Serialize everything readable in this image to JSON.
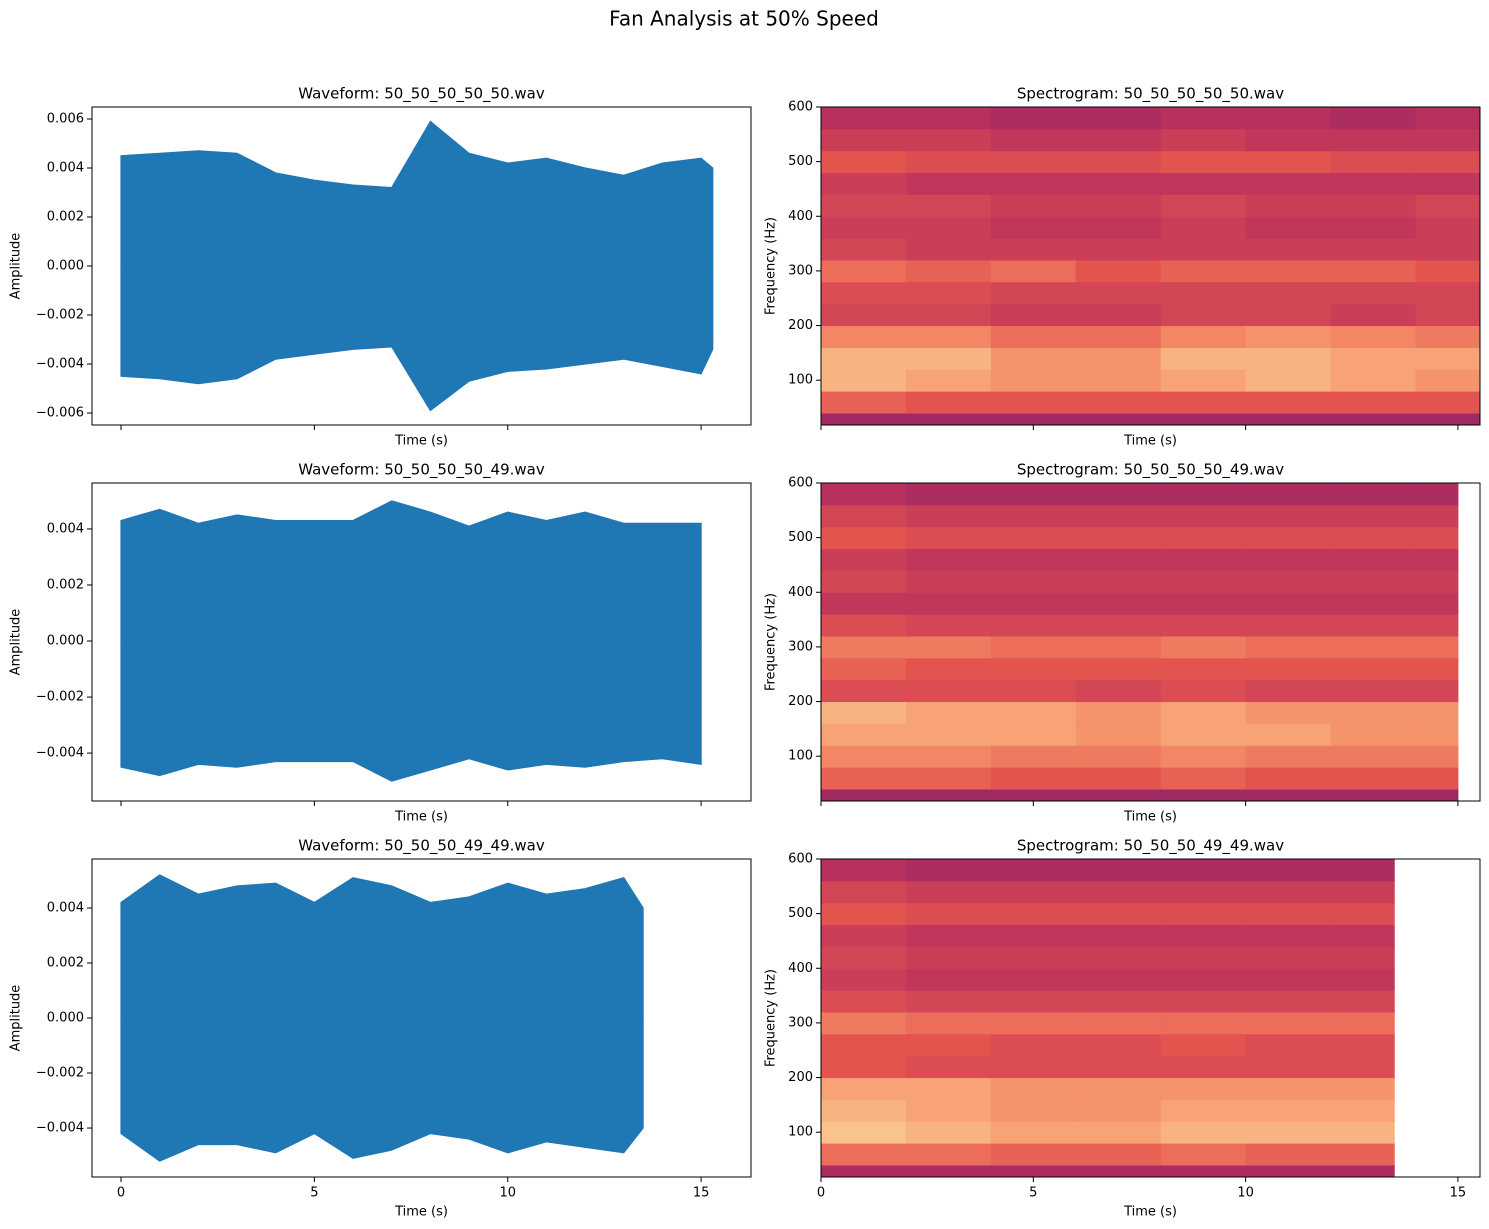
{
  "title": "Fan Analysis at 50% Speed",
  "colormap": [
    "#7d2168",
    "#b8305e",
    "#e4544f",
    "#f5936a",
    "#fde3a6"
  ],
  "chart_data": [
    {
      "type": "waveform",
      "title": "Waveform: 50_50_50_50_50.wav",
      "xlabel": "Time (s)",
      "ylabel": "Amplitude",
      "color": "#1f77b4",
      "x": [
        0,
        1,
        2,
        3,
        4,
        5,
        6,
        7,
        8,
        9,
        10,
        11,
        12,
        13,
        14,
        15,
        15.3
      ],
      "upper": [
        0.0045,
        0.0046,
        0.0047,
        0.0046,
        0.0038,
        0.0035,
        0.0033,
        0.0032,
        0.0059,
        0.0046,
        0.0042,
        0.0044,
        0.004,
        0.0037,
        0.0042,
        0.0044,
        0.004
      ],
      "lower": [
        -0.0045,
        -0.0046,
        -0.0048,
        -0.0046,
        -0.0038,
        -0.0036,
        -0.0034,
        -0.0033,
        -0.0059,
        -0.0047,
        -0.0043,
        -0.0042,
        -0.004,
        -0.0038,
        -0.0041,
        -0.0044,
        -0.0034
      ],
      "xlim": [
        -0.75,
        16.29
      ],
      "xticks": [
        0,
        5,
        10,
        15
      ],
      "show_xtick_labels": false,
      "ylim": [
        -0.00649,
        0.00649
      ],
      "yticks": [
        {
          "value": -0.006,
          "label": "−0.006"
        },
        {
          "value": -0.004,
          "label": "−0.004"
        },
        {
          "value": -0.002,
          "label": "−0.002"
        },
        {
          "value": 0,
          "label": "0.000"
        },
        0.002,
        0.004,
        0.006
      ]
    },
    {
      "type": "spectrogram",
      "title": "Spectrogram: 50_50_50_50_50.wav",
      "xlabel": "Time (s)",
      "ylabel": "Frequency (Hz)",
      "x": [
        0,
        2,
        4,
        6,
        8,
        10,
        12,
        14,
        15.5
      ],
      "bands": [
        18,
        40,
        80,
        120,
        160,
        200,
        240,
        280,
        320,
        360,
        400,
        440,
        480,
        520,
        560,
        600
      ],
      "z": [
        [
          0.15,
          0.15,
          0.15,
          0.15,
          0.15,
          0.15,
          0.15,
          0.15
        ],
        [
          0.55,
          0.5,
          0.5,
          0.5,
          0.5,
          0.5,
          0.5,
          0.5
        ],
        [
          0.85,
          0.8,
          0.75,
          0.75,
          0.8,
          0.85,
          0.8,
          0.75
        ],
        [
          0.85,
          0.85,
          0.75,
          0.75,
          0.85,
          0.85,
          0.8,
          0.8
        ],
        [
          0.7,
          0.7,
          0.6,
          0.6,
          0.7,
          0.75,
          0.7,
          0.65
        ],
        [
          0.4,
          0.4,
          0.35,
          0.35,
          0.4,
          0.4,
          0.35,
          0.4
        ],
        [
          0.45,
          0.45,
          0.4,
          0.4,
          0.4,
          0.4,
          0.4,
          0.4
        ],
        [
          0.6,
          0.55,
          0.6,
          0.5,
          0.55,
          0.55,
          0.55,
          0.5
        ],
        [
          0.4,
          0.35,
          0.35,
          0.35,
          0.35,
          0.35,
          0.35,
          0.35
        ],
        [
          0.35,
          0.35,
          0.3,
          0.3,
          0.35,
          0.3,
          0.3,
          0.35
        ],
        [
          0.4,
          0.4,
          0.35,
          0.35,
          0.4,
          0.35,
          0.35,
          0.4
        ],
        [
          0.35,
          0.3,
          0.3,
          0.3,
          0.3,
          0.3,
          0.3,
          0.3
        ],
        [
          0.5,
          0.45,
          0.45,
          0.45,
          0.5,
          0.5,
          0.45,
          0.45
        ],
        [
          0.35,
          0.35,
          0.3,
          0.3,
          0.35,
          0.3,
          0.3,
          0.3
        ],
        [
          0.25,
          0.25,
          0.2,
          0.2,
          0.25,
          0.25,
          0.2,
          0.25
        ]
      ],
      "xlim": [
        0,
        15.52
      ],
      "xticks": [
        0,
        5,
        10,
        15
      ],
      "show_xtick_labels": false,
      "ylim": [
        18,
        600
      ],
      "yticks": [
        100,
        200,
        300,
        400,
        500,
        600
      ]
    },
    {
      "type": "waveform",
      "title": "Waveform: 50_50_50_50_49.wav",
      "xlabel": "Time (s)",
      "ylabel": "Amplitude",
      "color": "#1f77b4",
      "x": [
        0,
        1,
        2,
        3,
        4,
        5,
        6,
        7,
        8,
        9,
        10,
        11,
        12,
        13,
        14,
        15
      ],
      "upper": [
        0.0043,
        0.0047,
        0.0042,
        0.0045,
        0.0043,
        0.0043,
        0.0043,
        0.005,
        0.0046,
        0.0041,
        0.0046,
        0.0043,
        0.0046,
        0.0042,
        0.0042,
        0.0042
      ],
      "lower": [
        -0.0045,
        -0.0048,
        -0.0044,
        -0.0045,
        -0.0043,
        -0.0043,
        -0.0043,
        -0.005,
        -0.0046,
        -0.0042,
        -0.0046,
        -0.0044,
        -0.0045,
        -0.0043,
        -0.0042,
        -0.0044
      ],
      "xlim": [
        -0.75,
        16.29
      ],
      "xticks": [
        0,
        5,
        10,
        15
      ],
      "show_xtick_labels": false,
      "ylim": [
        -0.00571,
        0.00564
      ],
      "yticks": [
        {
          "value": -0.004,
          "label": "−0.004"
        },
        {
          "value": -0.002,
          "label": "−0.002"
        },
        {
          "value": 0,
          "label": "0.000"
        },
        0.002,
        0.004
      ]
    },
    {
      "type": "spectrogram",
      "title": "Spectrogram: 50_50_50_50_49.wav",
      "xlabel": "Time (s)",
      "ylabel": "Frequency (Hz)",
      "x": [
        0,
        2,
        4,
        6,
        8,
        10,
        12,
        14,
        15
      ],
      "bands": [
        18,
        40,
        80,
        120,
        160,
        200,
        240,
        280,
        320,
        360,
        400,
        440,
        480,
        520,
        560,
        600
      ],
      "z": [
        [
          0.15,
          0.15,
          0.15,
          0.15,
          0.15,
          0.15,
          0.15,
          0.15
        ],
        [
          0.55,
          0.55,
          0.5,
          0.5,
          0.55,
          0.5,
          0.5,
          0.5
        ],
        [
          0.7,
          0.7,
          0.65,
          0.65,
          0.7,
          0.65,
          0.65,
          0.65
        ],
        [
          0.8,
          0.8,
          0.8,
          0.75,
          0.8,
          0.8,
          0.75,
          0.75
        ],
        [
          0.85,
          0.8,
          0.8,
          0.75,
          0.8,
          0.75,
          0.75,
          0.75
        ],
        [
          0.45,
          0.45,
          0.45,
          0.4,
          0.45,
          0.4,
          0.4,
          0.4
        ],
        [
          0.55,
          0.5,
          0.5,
          0.5,
          0.5,
          0.5,
          0.5,
          0.5
        ],
        [
          0.65,
          0.65,
          0.6,
          0.6,
          0.65,
          0.6,
          0.6,
          0.6
        ],
        [
          0.45,
          0.4,
          0.4,
          0.4,
          0.4,
          0.4,
          0.4,
          0.4
        ],
        [
          0.3,
          0.3,
          0.3,
          0.3,
          0.3,
          0.3,
          0.3,
          0.3
        ],
        [
          0.4,
          0.35,
          0.35,
          0.35,
          0.35,
          0.35,
          0.35,
          0.35
        ],
        [
          0.35,
          0.3,
          0.3,
          0.3,
          0.3,
          0.3,
          0.3,
          0.3
        ],
        [
          0.5,
          0.45,
          0.45,
          0.45,
          0.45,
          0.45,
          0.45,
          0.45
        ],
        [
          0.4,
          0.35,
          0.35,
          0.35,
          0.35,
          0.35,
          0.35,
          0.35
        ],
        [
          0.25,
          0.2,
          0.2,
          0.2,
          0.2,
          0.2,
          0.2,
          0.2
        ]
      ],
      "xlim": [
        0,
        15.52
      ],
      "xticks": [
        0,
        5,
        10,
        15
      ],
      "show_xtick_labels": false,
      "ylim": [
        18,
        600
      ],
      "yticks": [
        100,
        200,
        300,
        400,
        500,
        600
      ]
    },
    {
      "type": "waveform",
      "title": "Waveform: 50_50_50_49_49.wav",
      "xlabel": "Time (s)",
      "ylabel": "Amplitude",
      "color": "#1f77b4",
      "x": [
        0,
        1,
        2,
        3,
        4,
        5,
        6,
        7,
        8,
        9,
        10,
        11,
        12,
        13,
        13.5
      ],
      "upper": [
        0.0042,
        0.0052,
        0.0045,
        0.0048,
        0.0049,
        0.0042,
        0.0051,
        0.0048,
        0.0042,
        0.0044,
        0.0049,
        0.0045,
        0.0047,
        0.0051,
        0.004
      ],
      "lower": [
        -0.0042,
        -0.0052,
        -0.0046,
        -0.0046,
        -0.0049,
        -0.0042,
        -0.0051,
        -0.0048,
        -0.0042,
        -0.0044,
        -0.0049,
        -0.0045,
        -0.0047,
        -0.0049,
        -0.004
      ],
      "xlim": [
        -0.75,
        16.29
      ],
      "xticks": [
        0,
        5,
        10,
        15
      ],
      "show_xtick_labels": true,
      "ylim": [
        -0.00578,
        0.00578
      ],
      "yticks": [
        {
          "value": -0.004,
          "label": "−0.004"
        },
        {
          "value": -0.002,
          "label": "−0.002"
        },
        {
          "value": 0,
          "label": "0.000"
        },
        0.002,
        0.004
      ]
    },
    {
      "type": "spectrogram",
      "title": "Spectrogram: 50_50_50_49_49.wav",
      "xlabel": "Time (s)",
      "ylabel": "Frequency (Hz)",
      "x": [
        0,
        2,
        4,
        6,
        8,
        10,
        12,
        13.5
      ],
      "bands": [
        18,
        40,
        80,
        120,
        160,
        200,
        240,
        280,
        320,
        360,
        400,
        440,
        480,
        520,
        560,
        600
      ],
      "z": [
        [
          0.2,
          0.2,
          0.2,
          0.2,
          0.2,
          0.2,
          0.2
        ],
        [
          0.6,
          0.6,
          0.55,
          0.55,
          0.6,
          0.55,
          0.55
        ],
        [
          0.9,
          0.85,
          0.8,
          0.8,
          0.85,
          0.85,
          0.85
        ],
        [
          0.85,
          0.8,
          0.75,
          0.75,
          0.8,
          0.8,
          0.8
        ],
        [
          0.8,
          0.8,
          0.75,
          0.75,
          0.75,
          0.75,
          0.75
        ],
        [
          0.5,
          0.45,
          0.45,
          0.45,
          0.45,
          0.45,
          0.45
        ],
        [
          0.5,
          0.5,
          0.45,
          0.45,
          0.5,
          0.45,
          0.45
        ],
        [
          0.65,
          0.6,
          0.6,
          0.6,
          0.6,
          0.6,
          0.6
        ],
        [
          0.45,
          0.4,
          0.4,
          0.4,
          0.4,
          0.4,
          0.4
        ],
        [
          0.35,
          0.3,
          0.3,
          0.3,
          0.3,
          0.3,
          0.3
        ],
        [
          0.4,
          0.35,
          0.35,
          0.35,
          0.35,
          0.35,
          0.35
        ],
        [
          0.35,
          0.3,
          0.3,
          0.3,
          0.3,
          0.3,
          0.3
        ],
        [
          0.5,
          0.45,
          0.45,
          0.45,
          0.45,
          0.45,
          0.45
        ],
        [
          0.4,
          0.35,
          0.35,
          0.35,
          0.35,
          0.35,
          0.35
        ],
        [
          0.25,
          0.2,
          0.2,
          0.2,
          0.2,
          0.2,
          0.2
        ]
      ],
      "xlim": [
        0,
        15.52
      ],
      "xticks": [
        0,
        5,
        10,
        15
      ],
      "show_xtick_labels": true,
      "ylim": [
        18,
        600
      ],
      "yticks": [
        100,
        200,
        300,
        400,
        500,
        600
      ]
    }
  ]
}
